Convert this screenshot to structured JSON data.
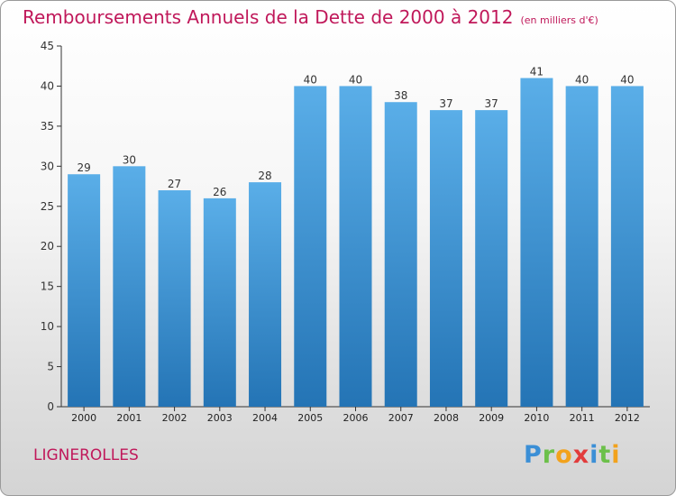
{
  "header": {
    "title": "Remboursements Annuels de la Dette de 2000 à 2012",
    "subtitle": "(en milliers d'€)"
  },
  "commune": "LIGNEROLLES",
  "logo": {
    "letters": [
      {
        "char": "P",
        "color": "#3b8fd6"
      },
      {
        "char": "r",
        "color": "#6cc04a"
      },
      {
        "char": "o",
        "color": "#f2a21c"
      },
      {
        "char": "x",
        "color": "#e23b3b"
      },
      {
        "char": "i",
        "color": "#3b8fd6"
      },
      {
        "char": "t",
        "color": "#6cc04a"
      },
      {
        "char": "i",
        "color": "#f2a21c"
      }
    ]
  },
  "colors": {
    "bar_light": "#5aaee8",
    "bar_dark": "#2474b5",
    "title": "#c0185a"
  },
  "chart_data": {
    "type": "bar",
    "categories": [
      "2000",
      "2001",
      "2002",
      "2003",
      "2004",
      "2005",
      "2006",
      "2007",
      "2008",
      "2009",
      "2010",
      "2011",
      "2012"
    ],
    "values": [
      29,
      30,
      27,
      26,
      28,
      40,
      40,
      38,
      37,
      37,
      41,
      40,
      40
    ],
    "ylim": [
      0,
      45
    ],
    "yticks": [
      0,
      5,
      10,
      15,
      20,
      25,
      30,
      35,
      40,
      45
    ],
    "grid": false,
    "data_labels": true
  }
}
